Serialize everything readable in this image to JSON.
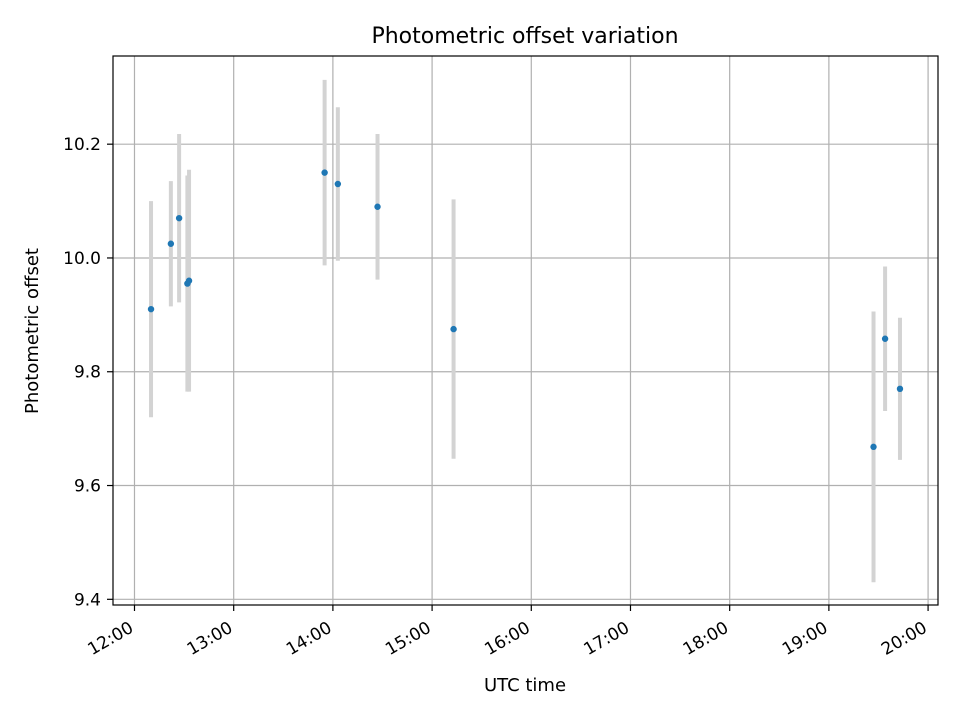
{
  "chart_data": {
    "type": "scatter",
    "title": "Photometric offset variation",
    "xlabel": "UTC time",
    "ylabel": "Photometric offset",
    "x_ticks": [
      "12:00",
      "13:00",
      "14:00",
      "15:00",
      "16:00",
      "17:00",
      "18:00",
      "19:00",
      "20:00"
    ],
    "y_ticks": [
      "9.4",
      "9.6",
      "9.8",
      "10.0",
      "10.2"
    ],
    "xlim": [
      "11:47",
      "20:06"
    ],
    "ylim": [
      9.39,
      10.355
    ],
    "grid": true,
    "marker_color": "#1f77b4",
    "errorbar_color": "#d3d3d3",
    "points": [
      {
        "x": "12:10",
        "y": 9.91,
        "err": 0.19
      },
      {
        "x": "12:22",
        "y": 10.025,
        "err": 0.11
      },
      {
        "x": "12:27",
        "y": 10.07,
        "err": 0.148
      },
      {
        "x": "12:32",
        "y": 9.955,
        "err": 0.19
      },
      {
        "x": "12:33",
        "y": 9.96,
        "err": 0.195
      },
      {
        "x": "13:55",
        "y": 10.15,
        "err": 0.163
      },
      {
        "x": "14:03",
        "y": 10.13,
        "err": 0.135
      },
      {
        "x": "14:27",
        "y": 10.09,
        "err": 0.128
      },
      {
        "x": "15:13",
        "y": 9.875,
        "err": 0.228
      },
      {
        "x": "19:27",
        "y": 9.668,
        "err": 0.238
      },
      {
        "x": "19:34",
        "y": 9.858,
        "err": 0.127
      },
      {
        "x": "19:43",
        "y": 9.77,
        "err": 0.125
      }
    ]
  }
}
